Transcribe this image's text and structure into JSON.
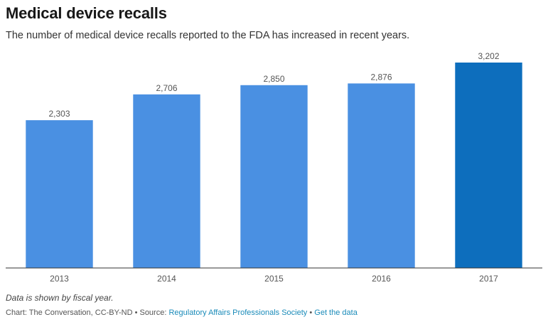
{
  "header": {
    "title": "Medical device recalls",
    "subtitle": "The number of medical device recalls reported to the FDA has increased in recent years."
  },
  "colors": {
    "bar": "#4a90e2",
    "bar_highlight": "#0d6ebd",
    "baseline": "#333333",
    "label": "#555555",
    "link": "#1a8bb9"
  },
  "chart_data": {
    "type": "bar",
    "title": "Medical device recalls",
    "subtitle": "The number of medical device recalls reported to the FDA has increased in recent years.",
    "categories": [
      "2013",
      "2014",
      "2015",
      "2016",
      "2017"
    ],
    "values": [
      2303,
      2706,
      2850,
      2876,
      3202
    ],
    "value_labels": [
      "2,303",
      "2,706",
      "2,850",
      "2,876",
      "3,202"
    ],
    "highlight_index": 4,
    "xlabel": "",
    "ylabel": "",
    "ylim": [
      0,
      3202
    ],
    "grid": false
  },
  "footer": {
    "note": "Data is shown by fiscal year.",
    "credit_prefix": "Chart: The Conversation, CC-BY-ND • Source: ",
    "source_link": "Regulatory Affairs Professionals Society",
    "separator": " • ",
    "get_data_link": "Get the data"
  }
}
